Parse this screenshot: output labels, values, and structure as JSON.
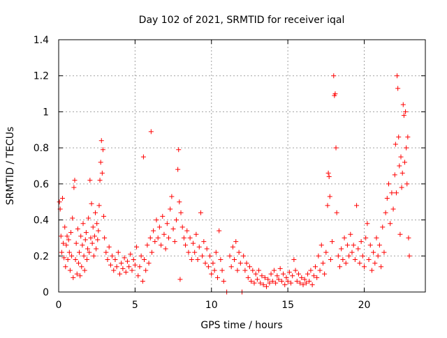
{
  "chart_data": {
    "type": "scatter",
    "title": "Day 102 of 2021, SRMTID for receiver iqal",
    "xlabel": "GPS time / hours",
    "ylabel": "SRMTID / TECUs",
    "xlim": [
      0,
      24
    ],
    "ylim": [
      0,
      1.4
    ],
    "xticks": [
      0,
      5,
      10,
      15,
      20
    ],
    "yticks": [
      0,
      0.2,
      0.4,
      0.6,
      0.8,
      1,
      1.2,
      1.4
    ],
    "xtick_labels": [
      "0",
      "5",
      "10",
      "15",
      "20"
    ],
    "ytick_labels": [
      "0",
      "0.2",
      "0.4",
      "0.6",
      "0.8",
      "1",
      "1.2",
      "1.4"
    ],
    "grid": true,
    "marker": "+",
    "color": "#ff0000",
    "series": [
      {
        "name": "SRMTID",
        "points": [
          [
            0.05,
            0.5
          ],
          [
            0.1,
            0.46
          ],
          [
            0.15,
            0.31
          ],
          [
            0.2,
            0.22
          ],
          [
            0.25,
            0.52
          ],
          [
            0.3,
            0.27
          ],
          [
            0.35,
            0.19
          ],
          [
            0.4,
            0.36
          ],
          [
            0.45,
            0.14
          ],
          [
            0.5,
            0.26
          ],
          [
            0.55,
            0.31
          ],
          [
            0.6,
            0.18
          ],
          [
            0.65,
            0.29
          ],
          [
            0.7,
            0.22
          ],
          [
            0.75,
            0.12
          ],
          [
            0.8,
            0.33
          ],
          [
            0.85,
            0.2
          ],
          [
            0.9,
            0.41
          ],
          [
            0.95,
            0.08
          ],
          [
            1.0,
            0.58
          ],
          [
            1.05,
            0.62
          ],
          [
            1.1,
            0.18
          ],
          [
            1.15,
            0.27
          ],
          [
            1.2,
            0.1
          ],
          [
            1.25,
            0.35
          ],
          [
            1.3,
            0.16
          ],
          [
            1.35,
            0.22
          ],
          [
            1.4,
            0.09
          ],
          [
            1.45,
            0.31
          ],
          [
            1.5,
            0.14
          ],
          [
            1.55,
            0.26
          ],
          [
            1.6,
            0.38
          ],
          [
            1.65,
            0.2
          ],
          [
            1.7,
            0.12
          ],
          [
            1.75,
            0.29
          ],
          [
            1.8,
            0.33
          ],
          [
            1.85,
            0.18
          ],
          [
            1.9,
            0.24
          ],
          [
            1.95,
            0.41
          ],
          [
            2.0,
            0.22
          ],
          [
            2.05,
            0.62
          ],
          [
            2.1,
            0.3
          ],
          [
            2.15,
            0.49
          ],
          [
            2.2,
            0.27
          ],
          [
            2.25,
            0.36
          ],
          [
            2.3,
            0.2
          ],
          [
            2.35,
            0.31
          ],
          [
            2.4,
            0.44
          ],
          [
            2.45,
            0.24
          ],
          [
            2.5,
            0.38
          ],
          [
            2.55,
            0.29
          ],
          [
            2.6,
            0.34
          ],
          [
            2.65,
            0.48
          ],
          [
            2.7,
            0.62
          ],
          [
            2.75,
            0.72
          ],
          [
            2.8,
            0.84
          ],
          [
            2.85,
            0.66
          ],
          [
            2.9,
            0.79
          ],
          [
            2.95,
            0.42
          ],
          [
            3.0,
            0.3
          ],
          [
            3.1,
            0.22
          ],
          [
            3.2,
            0.18
          ],
          [
            3.3,
            0.25
          ],
          [
            3.4,
            0.15
          ],
          [
            3.5,
            0.2
          ],
          [
            3.6,
            0.12
          ],
          [
            3.7,
            0.18
          ],
          [
            3.8,
            0.14
          ],
          [
            3.9,
            0.22
          ],
          [
            4.0,
            0.1
          ],
          [
            4.1,
            0.16
          ],
          [
            4.2,
            0.13
          ],
          [
            4.3,
            0.19
          ],
          [
            4.4,
            0.11
          ],
          [
            4.5,
            0.17
          ],
          [
            4.6,
            0.14
          ],
          [
            4.7,
            0.21
          ],
          [
            4.8,
            0.12
          ],
          [
            4.9,
            0.18
          ],
          [
            5.0,
            0.15
          ],
          [
            5.1,
            0.25
          ],
          [
            5.2,
            0.09
          ],
          [
            5.3,
            0.14
          ],
          [
            5.4,
            0.2
          ],
          [
            5.5,
            0.06
          ],
          [
            5.55,
            0.75
          ],
          [
            5.6,
            0.18
          ],
          [
            5.7,
            0.12
          ],
          [
            5.8,
            0.26
          ],
          [
            5.9,
            0.16
          ],
          [
            6.0,
            0.3
          ],
          [
            6.05,
            0.89
          ],
          [
            6.1,
            0.22
          ],
          [
            6.2,
            0.34
          ],
          [
            6.3,
            0.28
          ],
          [
            6.4,
            0.4
          ],
          [
            6.5,
            0.3
          ],
          [
            6.6,
            0.36
          ],
          [
            6.7,
            0.26
          ],
          [
            6.8,
            0.42
          ],
          [
            6.9,
            0.32
          ],
          [
            7.0,
            0.24
          ],
          [
            7.1,
            0.38
          ],
          [
            7.2,
            0.3
          ],
          [
            7.3,
            0.46
          ],
          [
            7.4,
            0.53
          ],
          [
            7.5,
            0.35
          ],
          [
            7.6,
            0.28
          ],
          [
            7.7,
            0.4
          ],
          [
            7.8,
            0.68
          ],
          [
            7.85,
            0.79
          ],
          [
            7.9,
            0.5
          ],
          [
            7.95,
            0.07
          ],
          [
            8.0,
            0.44
          ],
          [
            8.1,
            0.36
          ],
          [
            8.2,
            0.3
          ],
          [
            8.3,
            0.26
          ],
          [
            8.4,
            0.34
          ],
          [
            8.5,
            0.22
          ],
          [
            8.6,
            0.3
          ],
          [
            8.7,
            0.18
          ],
          [
            8.8,
            0.27
          ],
          [
            8.9,
            0.22
          ],
          [
            9.0,
            0.32
          ],
          [
            9.1,
            0.18
          ],
          [
            9.2,
            0.25
          ],
          [
            9.3,
            0.44
          ],
          [
            9.4,
            0.2
          ],
          [
            9.5,
            0.28
          ],
          [
            9.6,
            0.16
          ],
          [
            9.7,
            0.24
          ],
          [
            9.8,
            0.14
          ],
          [
            9.9,
            0.2
          ],
          [
            10.0,
            0.1
          ],
          [
            10.1,
            0.16
          ],
          [
            10.2,
            0.12
          ],
          [
            10.3,
            0.22
          ],
          [
            10.4,
            0.08
          ],
          [
            10.5,
            0.34
          ],
          [
            10.6,
            0.18
          ],
          [
            10.7,
            0.12
          ],
          [
            10.8,
            0.06
          ],
          [
            11.0,
            0.0
          ],
          [
            11.2,
            0.2
          ],
          [
            11.3,
            0.14
          ],
          [
            11.4,
            0.25
          ],
          [
            11.5,
            0.18
          ],
          [
            11.6,
            0.28
          ],
          [
            11.7,
            0.12
          ],
          [
            11.8,
            0.22
          ],
          [
            11.9,
            0.16
          ],
          [
            12.0,
            0.0
          ],
          [
            12.1,
            0.2
          ],
          [
            12.2,
            0.12
          ],
          [
            12.3,
            0.16
          ],
          [
            12.4,
            0.08
          ],
          [
            12.5,
            0.14
          ],
          [
            12.6,
            0.06
          ],
          [
            12.7,
            0.12
          ],
          [
            12.8,
            0.05
          ],
          [
            12.9,
            0.1
          ],
          [
            13.0,
            0.07
          ],
          [
            13.1,
            0.12
          ],
          [
            13.2,
            0.05
          ],
          [
            13.3,
            0.09
          ],
          [
            13.4,
            0.04
          ],
          [
            13.5,
            0.08
          ],
          [
            13.6,
            0.03
          ],
          [
            13.7,
            0.07
          ],
          [
            13.8,
            0.05
          ],
          [
            13.9,
            0.1
          ],
          [
            14.0,
            0.06
          ],
          [
            14.1,
            0.12
          ],
          [
            14.2,
            0.05
          ],
          [
            14.3,
            0.09
          ],
          [
            14.4,
            0.07
          ],
          [
            14.5,
            0.13
          ],
          [
            14.6,
            0.06
          ],
          [
            14.7,
            0.1
          ],
          [
            14.8,
            0.04
          ],
          [
            14.9,
            0.08
          ],
          [
            15.0,
            0.06
          ],
          [
            15.1,
            0.11
          ],
          [
            15.2,
            0.05
          ],
          [
            15.3,
            0.09
          ],
          [
            15.4,
            0.18
          ],
          [
            15.5,
            0.12
          ],
          [
            15.6,
            0.06
          ],
          [
            15.7,
            0.1
          ],
          [
            15.8,
            0.05
          ],
          [
            15.9,
            0.08
          ],
          [
            16.0,
            0.04
          ],
          [
            16.1,
            0.07
          ],
          [
            16.2,
            0.05
          ],
          [
            16.3,
            0.1
          ],
          [
            16.4,
            0.06
          ],
          [
            16.5,
            0.12
          ],
          [
            16.6,
            0.04
          ],
          [
            16.7,
            0.09
          ],
          [
            16.8,
            0.14
          ],
          [
            16.9,
            0.08
          ],
          [
            17.0,
            0.2
          ],
          [
            17.1,
            0.12
          ],
          [
            17.2,
            0.26
          ],
          [
            17.3,
            0.16
          ],
          [
            17.4,
            0.1
          ],
          [
            17.5,
            0.22
          ],
          [
            17.6,
            0.48
          ],
          [
            17.65,
            0.66
          ],
          [
            17.7,
            0.64
          ],
          [
            17.75,
            0.53
          ],
          [
            17.8,
            0.18
          ],
          [
            17.9,
            0.28
          ],
          [
            18.0,
            1.2
          ],
          [
            18.05,
            1.09
          ],
          [
            18.1,
            1.1
          ],
          [
            18.15,
            0.8
          ],
          [
            18.2,
            0.44
          ],
          [
            18.3,
            0.2
          ],
          [
            18.4,
            0.14
          ],
          [
            18.5,
            0.24
          ],
          [
            18.6,
            0.18
          ],
          [
            18.7,
            0.3
          ],
          [
            18.8,
            0.16
          ],
          [
            18.9,
            0.26
          ],
          [
            19.0,
            0.2
          ],
          [
            19.1,
            0.32
          ],
          [
            19.2,
            0.22
          ],
          [
            19.3,
            0.26
          ],
          [
            19.4,
            0.18
          ],
          [
            19.5,
            0.48
          ],
          [
            19.6,
            0.24
          ],
          [
            19.7,
            0.16
          ],
          [
            19.8,
            0.28
          ],
          [
            19.9,
            0.2
          ],
          [
            20.0,
            0.14
          ],
          [
            20.1,
            0.3
          ],
          [
            20.2,
            0.38
          ],
          [
            20.3,
            0.18
          ],
          [
            20.4,
            0.26
          ],
          [
            20.5,
            0.12
          ],
          [
            20.6,
            0.22
          ],
          [
            20.7,
            0.16
          ],
          [
            20.8,
            0.3
          ],
          [
            20.9,
            0.2
          ],
          [
            21.0,
            0.26
          ],
          [
            21.1,
            0.14
          ],
          [
            21.2,
            0.36
          ],
          [
            21.3,
            0.22
          ],
          [
            21.4,
            0.44
          ],
          [
            21.5,
            0.52
          ],
          [
            21.6,
            0.6
          ],
          [
            21.7,
            0.38
          ],
          [
            21.8,
            0.55
          ],
          [
            21.9,
            0.46
          ],
          [
            22.0,
            0.65
          ],
          [
            22.05,
            0.82
          ],
          [
            22.1,
            0.55
          ],
          [
            22.15,
            1.2
          ],
          [
            22.2,
            1.13
          ],
          [
            22.25,
            0.86
          ],
          [
            22.3,
            0.7
          ],
          [
            22.35,
            0.32
          ],
          [
            22.4,
            0.75
          ],
          [
            22.45,
            0.58
          ],
          [
            22.5,
            0.66
          ],
          [
            22.55,
            1.04
          ],
          [
            22.6,
            0.98
          ],
          [
            22.65,
            0.72
          ],
          [
            22.7,
            1.0
          ],
          [
            22.75,
            0.8
          ],
          [
            22.8,
            0.6
          ],
          [
            22.85,
            0.86
          ],
          [
            22.9,
            0.3
          ],
          [
            22.95,
            0.2
          ]
        ]
      }
    ]
  }
}
